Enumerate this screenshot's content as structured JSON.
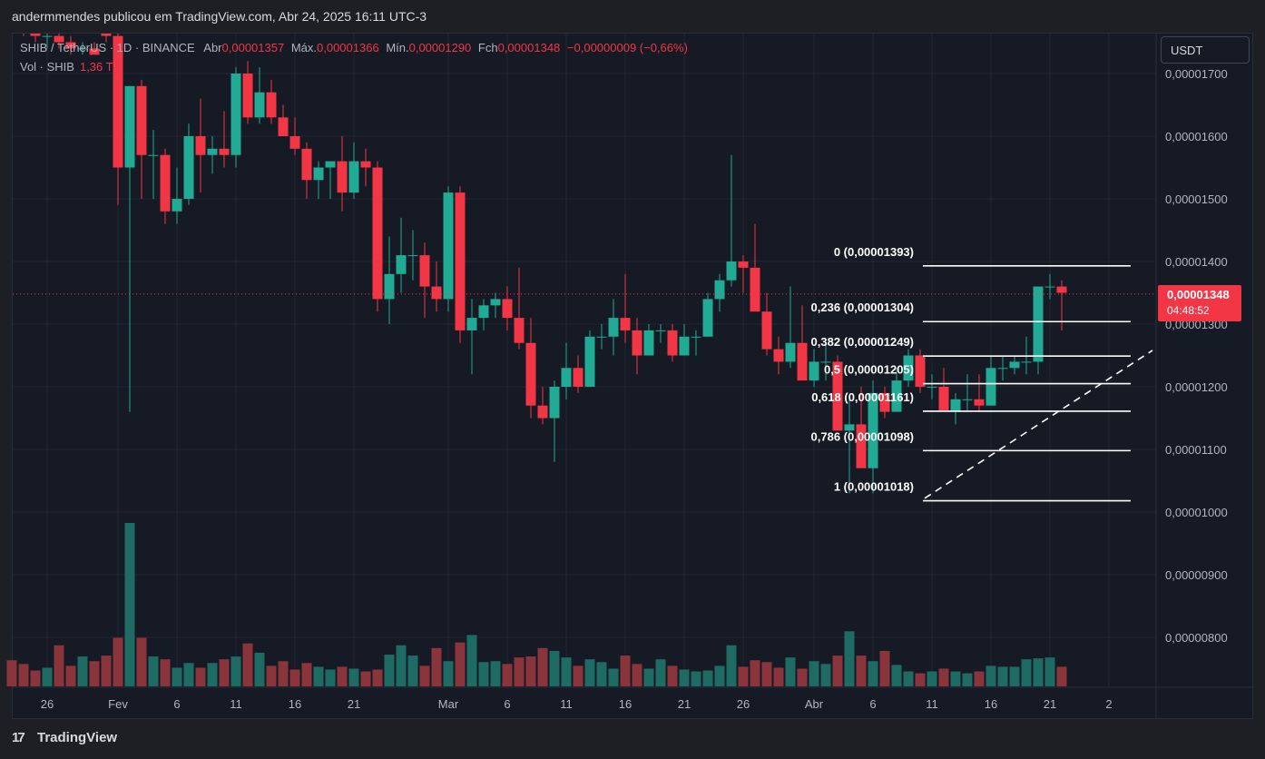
{
  "top_bar": {
    "text": "andermmendes publicou em TradingView.com, Abr 24, 2025 16:11 UTC-3"
  },
  "header": {
    "symbol": "SHIB / TetherUS · 1D · BINANCE",
    "open_label": "Abr",
    "open_value": "0,00001357",
    "high_label": "Máx.",
    "high_value": "0,00001366",
    "low_label": "Mín.",
    "low_value": "0,00001290",
    "close_label": "Fch",
    "close_value": "0,00001348",
    "change": "−0,00000009 (−0,66%)",
    "vol_label": "Vol · SHIB",
    "vol_value": "1,36 T"
  },
  "currency_button": "USDT",
  "last_price": {
    "price": "0,00001348",
    "countdown": "04:48:52"
  },
  "footer": {
    "brand": "TradingView",
    "logo_glyph": "17"
  },
  "colors": {
    "up": "#22ab94",
    "down": "#f23645",
    "vol_up": "#1e6b63",
    "vol_down": "#8a343c",
    "background": "#161a25"
  },
  "chart_data": {
    "type": "candlestick",
    "title": "SHIB / TetherUS · 1D · BINANCE",
    "ylim": [
      7.3e-06,
      1.77e-05
    ],
    "y_ticks": [
      1.7e-05,
      1.6e-05,
      1.5e-05,
      1.4e-05,
      1.3e-05,
      1.2e-05,
      1.1e-05,
      1e-05,
      9e-06,
      8e-06
    ],
    "y_tick_labels": [
      "0,00001700",
      "0,00001600",
      "0,00001500",
      "0,00001400",
      "0,00001300",
      "0,00001200",
      "0,00001100",
      "0,00001000",
      "0,00000900",
      "0,00000800"
    ],
    "x_ticks": [
      {
        "label": "26",
        "index": 3
      },
      {
        "label": "Fev",
        "index": 9
      },
      {
        "label": "6",
        "index": 14
      },
      {
        "label": "11",
        "index": 19
      },
      {
        "label": "16",
        "index": 24
      },
      {
        "label": "21",
        "index": 29
      },
      {
        "label": "Mar",
        "index": 37
      },
      {
        "label": "6",
        "index": 42
      },
      {
        "label": "11",
        "index": 47
      },
      {
        "label": "16",
        "index": 52
      },
      {
        "label": "21",
        "index": 57
      },
      {
        "label": "26",
        "index": 62
      },
      {
        "label": "Abr",
        "index": 68
      },
      {
        "label": "6",
        "index": 73
      },
      {
        "label": "11",
        "index": 78
      },
      {
        "label": "16",
        "index": 83
      },
      {
        "label": "21",
        "index": 88
      },
      {
        "label": "2",
        "index": 93
      }
    ],
    "candles": [
      [
        1.8e-05,
        1.81e-05,
        1.77e-05,
        1.78e-05
      ],
      [
        1.78e-05,
        1.79e-05,
        1.76e-05,
        1.77e-05
      ],
      [
        1.77e-05,
        1.78e-05,
        1.75e-05,
        1.76e-05
      ],
      [
        1.76e-05,
        1.77e-05,
        1.74e-05,
        1.76e-05
      ],
      [
        1.76e-05,
        1.77e-05,
        1.74e-05,
        1.75e-05
      ],
      [
        1.75e-05,
        1.76e-05,
        1.73e-05,
        1.74e-05
      ],
      [
        1.74e-05,
        1.75e-05,
        1.73e-05,
        1.74e-05
      ],
      [
        1.74e-05,
        1.75e-05,
        1.73e-05,
        1.73e-05
      ],
      [
        1.77e-05,
        1.78e-05,
        1.75e-05,
        1.76e-05
      ],
      [
        1.76e-05,
        1.78e-05,
        1.49e-05,
        1.55e-05
      ],
      [
        1.55e-05,
        1.68e-05,
        1.16e-05,
        1.68e-05
      ],
      [
        1.68e-05,
        1.69e-05,
        1.5e-05,
        1.57e-05
      ],
      [
        1.57e-05,
        1.61e-05,
        1.5e-05,
        1.57e-05
      ],
      [
        1.57e-05,
        1.58e-05,
        1.46e-05,
        1.48e-05
      ],
      [
        1.48e-05,
        1.55e-05,
        1.46e-05,
        1.5e-05
      ],
      [
        1.5e-05,
        1.62e-05,
        1.49e-05,
        1.6e-05
      ],
      [
        1.6e-05,
        1.66e-05,
        1.51e-05,
        1.57e-05
      ],
      [
        1.57e-05,
        1.6e-05,
        1.54e-05,
        1.58e-05
      ],
      [
        1.58e-05,
        1.64e-05,
        1.55e-05,
        1.57e-05
      ],
      [
        1.57e-05,
        1.71e-05,
        1.55e-05,
        1.7e-05
      ],
      [
        1.7e-05,
        1.72e-05,
        1.62e-05,
        1.63e-05
      ],
      [
        1.63e-05,
        1.71e-05,
        1.62e-05,
        1.67e-05
      ],
      [
        1.67e-05,
        1.69e-05,
        1.62e-05,
        1.63e-05
      ],
      [
        1.63e-05,
        1.65e-05,
        1.6e-05,
        1.6e-05
      ],
      [
        1.6e-05,
        1.63e-05,
        1.57e-05,
        1.58e-05
      ],
      [
        1.58e-05,
        1.59e-05,
        1.5e-05,
        1.53e-05
      ],
      [
        1.53e-05,
        1.56e-05,
        1.5e-05,
        1.55e-05
      ],
      [
        1.55e-05,
        1.56e-05,
        1.5e-05,
        1.56e-05
      ],
      [
        1.56e-05,
        1.6e-05,
        1.48e-05,
        1.51e-05
      ],
      [
        1.51e-05,
        1.59e-05,
        1.5e-05,
        1.56e-05
      ],
      [
        1.56e-05,
        1.58e-05,
        1.52e-05,
        1.55e-05
      ],
      [
        1.55e-05,
        1.56e-05,
        1.32e-05,
        1.34e-05
      ],
      [
        1.34e-05,
        1.44e-05,
        1.3e-05,
        1.38e-05
      ],
      [
        1.38e-05,
        1.47e-05,
        1.35e-05,
        1.41e-05
      ],
      [
        1.41e-05,
        1.45e-05,
        1.37e-05,
        1.41e-05
      ],
      [
        1.41e-05,
        1.43e-05,
        1.31e-05,
        1.36e-05
      ],
      [
        1.36e-05,
        1.4e-05,
        1.32e-05,
        1.34e-05
      ],
      [
        1.34e-05,
        1.52e-05,
        1.32e-05,
        1.51e-05
      ],
      [
        1.51e-05,
        1.52e-05,
        1.27e-05,
        1.29e-05
      ],
      [
        1.29e-05,
        1.34e-05,
        1.22e-05,
        1.31e-05
      ],
      [
        1.31e-05,
        1.34e-05,
        1.29e-05,
        1.33e-05
      ],
      [
        1.33e-05,
        1.35e-05,
        1.31e-05,
        1.34e-05
      ],
      [
        1.34e-05,
        1.36e-05,
        1.29e-05,
        1.31e-05
      ],
      [
        1.31e-05,
        1.39e-05,
        1.26e-05,
        1.27e-05
      ],
      [
        1.27e-05,
        1.31e-05,
        1.15e-05,
        1.17e-05
      ],
      [
        1.17e-05,
        1.2e-05,
        1.14e-05,
        1.15e-05
      ],
      [
        1.15e-05,
        1.21e-05,
        1.08e-05,
        1.2e-05
      ],
      [
        1.2e-05,
        1.27e-05,
        1.18e-05,
        1.23e-05
      ],
      [
        1.23e-05,
        1.25e-05,
        1.19e-05,
        1.2e-05
      ],
      [
        1.2e-05,
        1.29e-05,
        1.2e-05,
        1.28e-05
      ],
      [
        1.28e-05,
        1.3e-05,
        1.26e-05,
        1.28e-05
      ],
      [
        1.28e-05,
        1.34e-05,
        1.25e-05,
        1.31e-05
      ],
      [
        1.31e-05,
        1.38e-05,
        1.27e-05,
        1.29e-05
      ],
      [
        1.29e-05,
        1.31e-05,
        1.22e-05,
        1.25e-05
      ],
      [
        1.25e-05,
        1.3e-05,
        1.25e-05,
        1.29e-05
      ],
      [
        1.29e-05,
        1.3e-05,
        1.27e-05,
        1.29e-05
      ],
      [
        1.29e-05,
        1.3e-05,
        1.24e-05,
        1.25e-05
      ],
      [
        1.25e-05,
        1.3e-05,
        1.25e-05,
        1.28e-05
      ],
      [
        1.28e-05,
        1.29e-05,
        1.25e-05,
        1.28e-05
      ],
      [
        1.28e-05,
        1.35e-05,
        1.28e-05,
        1.34e-05
      ],
      [
        1.34e-05,
        1.38e-05,
        1.32e-05,
        1.37e-05
      ],
      [
        1.37e-05,
        1.57e-05,
        1.36e-05,
        1.4e-05
      ],
      [
        1.4e-05,
        1.41e-05,
        1.35e-05,
        1.39e-05
      ],
      [
        1.39e-05,
        1.46e-05,
        1.33e-05,
        1.32e-05
      ],
      [
        1.32e-05,
        1.35e-05,
        1.25e-05,
        1.26e-05
      ],
      [
        1.26e-05,
        1.28e-05,
        1.22e-05,
        1.24e-05
      ],
      [
        1.24e-05,
        1.36e-05,
        1.23e-05,
        1.27e-05
      ],
      [
        1.27e-05,
        1.33e-05,
        1.21e-05,
        1.21e-05
      ],
      [
        1.21e-05,
        1.26e-05,
        1.2e-05,
        1.24e-05
      ],
      [
        1.24e-05,
        1.27e-05,
        1.21e-05,
        1.24e-05
      ],
      [
        1.24e-05,
        1.25e-05,
        1.13e-05,
        1.13e-05
      ],
      [
        1.13e-05,
        1.18e-05,
        1.03e-05,
        1.14e-05
      ],
      [
        1.14e-05,
        1.2e-05,
        1.07e-05,
        1.07e-05
      ],
      [
        1.07e-05,
        1.21e-05,
        1.03e-05,
        1.19e-05
      ],
      [
        1.19e-05,
        1.2e-05,
        1.15e-05,
        1.16e-05
      ],
      [
        1.16e-05,
        1.23e-05,
        1.16e-05,
        1.21e-05
      ],
      [
        1.21e-05,
        1.26e-05,
        1.2e-05,
        1.25e-05
      ],
      [
        1.25e-05,
        1.26e-05,
        1.19e-05,
        1.2e-05
      ],
      [
        1.2e-05,
        1.22e-05,
        1.18e-05,
        1.2e-05
      ],
      [
        1.2e-05,
        1.23e-05,
        1.16e-05,
        1.16e-05
      ],
      [
        1.16e-05,
        1.19e-05,
        1.14e-05,
        1.18e-05
      ],
      [
        1.18e-05,
        1.22e-05,
        1.16e-05,
        1.18e-05
      ],
      [
        1.18e-05,
        1.22e-05,
        1.16e-05,
        1.17e-05
      ],
      [
        1.17e-05,
        1.25e-05,
        1.17e-05,
        1.23e-05
      ],
      [
        1.23e-05,
        1.25e-05,
        1.21e-05,
        1.23e-05
      ],
      [
        1.23e-05,
        1.25e-05,
        1.22e-05,
        1.24e-05
      ],
      [
        1.24e-05,
        1.28e-05,
        1.22e-05,
        1.24e-05
      ],
      [
        1.24e-05,
        1.36e-05,
        1.22e-05,
        1.36e-05
      ],
      [
        1.36e-05,
        1.38e-05,
        1.34e-05,
        1.36e-05
      ],
      [
        1.36e-05,
        1.37e-05,
        1.29e-05,
        1.35e-05
      ]
    ],
    "volume_scale": {
      "ref_index": 10,
      "ref_level": 0.175
    },
    "volumes": [
      0.028,
      0.024,
      0.017,
      0.02,
      0.044,
      0.022,
      0.032,
      0.027,
      0.033,
      0.052,
      0.175,
      0.052,
      0.032,
      0.029,
      0.02,
      0.025,
      0.02,
      0.025,
      0.029,
      0.032,
      0.046,
      0.036,
      0.022,
      0.027,
      0.018,
      0.025,
      0.021,
      0.018,
      0.021,
      0.019,
      0.016,
      0.018,
      0.034,
      0.044,
      0.033,
      0.022,
      0.041,
      0.027,
      0.047,
      0.055,
      0.026,
      0.027,
      0.024,
      0.031,
      0.032,
      0.041,
      0.038,
      0.031,
      0.022,
      0.029,
      0.026,
      0.019,
      0.033,
      0.024,
      0.019,
      0.029,
      0.022,
      0.018,
      0.016,
      0.017,
      0.022,
      0.044,
      0.021,
      0.028,
      0.026,
      0.02,
      0.031,
      0.019,
      0.027,
      0.024,
      0.033,
      0.059,
      0.033,
      0.027,
      0.038,
      0.023,
      0.016,
      0.014,
      0.016,
      0.019,
      0.016,
      0.014,
      0.016,
      0.022,
      0.021,
      0.021,
      0.029,
      0.03,
      0.031,
      0.021
    ],
    "fibonacci": [
      {
        "ratio": "0",
        "label": "0 (0,00001393)",
        "price": 1.393e-05
      },
      {
        "ratio": "0.236",
        "label": "0,236 (0,00001304)",
        "price": 1.304e-05
      },
      {
        "ratio": "0.382",
        "label": "0,382 (0,00001249)",
        "price": 1.249e-05
      },
      {
        "ratio": "0.5",
        "label": "0,5 (0,00001205)",
        "price": 1.205e-05
      },
      {
        "ratio": "0.618",
        "label": "0,618 (0,00001161)",
        "price": 1.161e-05
      },
      {
        "ratio": "0.786",
        "label": "0,786 (0,00001098)",
        "price": 1.098e-05
      },
      {
        "ratio": "1",
        "label": "1 (0,00001018)",
        "price": 1.018e-05
      }
    ],
    "fib_start_index": 76,
    "trendline": {
      "from": {
        "index": 76,
        "price": 1.022e-05
      },
      "to": {
        "index": 95,
        "price": 1.258e-05
      }
    },
    "current_price_line": 1.348e-05,
    "grid": true
  }
}
